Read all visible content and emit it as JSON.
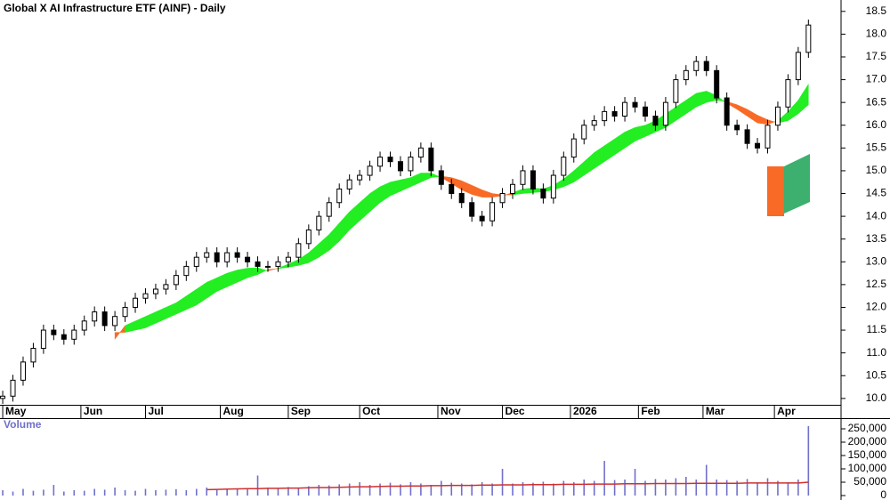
{
  "chart_data": [
    {
      "type": "candlestick",
      "title": "Global X AI Infrastructure ETF (AINF) - Daily",
      "x": [
        0,
        3,
        6,
        9,
        12,
        15,
        18,
        21,
        24,
        27,
        30,
        33,
        36,
        39,
        42,
        45,
        48,
        51,
        54,
        57,
        60,
        63,
        66,
        69,
        72,
        75,
        78,
        81,
        84,
        87,
        90,
        93,
        96,
        99,
        102,
        105,
        108,
        111,
        114,
        117,
        120,
        123,
        126,
        129,
        132,
        135,
        138,
        141,
        144,
        147,
        150,
        153,
        156,
        159,
        162,
        165,
        168,
        171,
        174,
        177,
        180,
        183,
        186,
        189,
        192,
        195,
        198,
        201,
        204,
        207,
        210,
        213,
        216,
        219,
        222,
        225,
        228,
        231,
        234,
        237
      ],
      "open": [
        10.0,
        10.05,
        10.4,
        10.8,
        11.1,
        11.5,
        11.4,
        11.3,
        11.5,
        11.7,
        11.9,
        11.6,
        11.8,
        12.0,
        12.2,
        12.3,
        12.4,
        12.5,
        12.7,
        12.9,
        13.1,
        13.2,
        13.0,
        13.2,
        13.1,
        13.0,
        12.9,
        12.9,
        13.0,
        13.1,
        13.4,
        13.7,
        14.0,
        14.3,
        14.6,
        14.8,
        14.9,
        15.1,
        15.3,
        15.2,
        15.0,
        15.3,
        15.5,
        15.0,
        14.7,
        14.5,
        14.3,
        14.0,
        13.9,
        14.3,
        14.5,
        14.7,
        15.0,
        14.6,
        14.4,
        14.9,
        15.3,
        15.7,
        16.0,
        16.1,
        16.3,
        16.2,
        16.5,
        16.4,
        16.2,
        16.0,
        16.5,
        17.0,
        17.2,
        17.4,
        17.2,
        16.6,
        16.0,
        15.9,
        15.6,
        15.5,
        16.0,
        16.4,
        17.0,
        17.6
      ],
      "high": [
        10.17,
        10.52,
        10.92,
        11.22,
        11.62,
        11.62,
        11.52,
        11.62,
        11.82,
        12.02,
        12.02,
        11.92,
        12.12,
        12.32,
        12.42,
        12.52,
        12.62,
        12.82,
        13.02,
        13.22,
        13.32,
        13.32,
        13.32,
        13.32,
        13.22,
        13.12,
        13.02,
        13.12,
        13.22,
        13.52,
        13.82,
        14.12,
        14.42,
        14.72,
        14.92,
        15.02,
        15.22,
        15.42,
        15.42,
        15.32,
        15.42,
        15.62,
        15.62,
        15.12,
        14.82,
        14.62,
        14.42,
        14.12,
        14.42,
        14.62,
        14.82,
        15.12,
        15.12,
        14.72,
        15.02,
        15.42,
        15.82,
        16.12,
        16.22,
        16.42,
        16.42,
        16.62,
        16.62,
        16.52,
        16.32,
        16.62,
        17.12,
        17.32,
        17.52,
        17.52,
        17.32,
        16.72,
        16.12,
        16.02,
        15.72,
        16.12,
        16.52,
        17.12,
        17.72,
        18.32
      ],
      "low": [
        9.88,
        9.93,
        10.28,
        10.68,
        10.98,
        11.28,
        11.18,
        11.18,
        11.38,
        11.58,
        11.48,
        11.48,
        11.68,
        11.88,
        12.08,
        12.18,
        12.28,
        12.38,
        12.58,
        12.78,
        12.98,
        12.88,
        12.88,
        12.98,
        12.88,
        12.78,
        12.78,
        12.78,
        12.88,
        12.98,
        13.28,
        13.58,
        13.88,
        14.18,
        14.48,
        14.68,
        14.78,
        14.98,
        15.08,
        14.88,
        14.88,
        15.18,
        14.88,
        14.58,
        14.38,
        14.18,
        13.88,
        13.78,
        13.78,
        14.18,
        14.38,
        14.58,
        14.48,
        14.28,
        14.28,
        14.78,
        15.18,
        15.58,
        15.88,
        15.98,
        16.08,
        16.08,
        16.28,
        16.08,
        15.88,
        15.88,
        16.38,
        16.88,
        17.08,
        17.08,
        16.48,
        15.88,
        15.78,
        15.48,
        15.38,
        15.38,
        15.88,
        16.28,
        16.88,
        17.48
      ],
      "close": [
        10.05,
        10.4,
        10.8,
        11.1,
        11.5,
        11.4,
        11.3,
        11.5,
        11.7,
        11.9,
        11.6,
        11.8,
        12.0,
        12.2,
        12.3,
        12.4,
        12.5,
        12.7,
        12.9,
        13.1,
        13.2,
        13.0,
        13.2,
        13.1,
        13.0,
        12.9,
        12.9,
        13.0,
        13.1,
        13.4,
        13.7,
        14.0,
        14.3,
        14.6,
        14.8,
        14.9,
        15.1,
        15.3,
        15.2,
        15.0,
        15.3,
        15.5,
        15.0,
        14.7,
        14.5,
        14.3,
        14.0,
        13.9,
        14.3,
        14.5,
        14.7,
        15.0,
        14.6,
        14.4,
        14.9,
        15.3,
        15.7,
        16.0,
        16.1,
        16.3,
        16.2,
        16.5,
        16.4,
        16.2,
        16.0,
        16.5,
        17.0,
        17.2,
        17.4,
        17.2,
        16.6,
        16.0,
        15.9,
        15.6,
        15.5,
        16.0,
        16.4,
        17.0,
        17.6,
        18.2
      ],
      "ribbon_fast": [
        null,
        null,
        null,
        null,
        null,
        null,
        null,
        null,
        null,
        null,
        null,
        11.3,
        11.6,
        11.7,
        11.8,
        11.9,
        12.0,
        12.1,
        12.25,
        12.4,
        12.55,
        12.65,
        12.75,
        12.82,
        12.86,
        12.87,
        12.8,
        12.86,
        12.95,
        13.05,
        13.2,
        13.4,
        13.6,
        13.85,
        14.1,
        14.3,
        14.5,
        14.65,
        14.75,
        14.8,
        14.85,
        14.95,
        14.95,
        14.85,
        14.72,
        14.58,
        14.48,
        14.42,
        14.42,
        14.45,
        14.52,
        14.6,
        14.62,
        14.6,
        14.68,
        14.82,
        15.0,
        15.2,
        15.4,
        15.55,
        15.7,
        15.85,
        15.95,
        16.0,
        16.1,
        16.25,
        16.4,
        16.55,
        16.7,
        16.75,
        16.65,
        16.48,
        16.35,
        16.2,
        16.05,
        16.02,
        16.1,
        16.3,
        16.55,
        16.9
      ],
      "ribbon_slow": [
        null,
        null,
        null,
        null,
        null,
        null,
        null,
        null,
        null,
        null,
        null,
        11.45,
        11.45,
        11.5,
        11.55,
        11.65,
        11.75,
        11.85,
        11.95,
        12.05,
        12.2,
        12.35,
        12.45,
        12.55,
        12.65,
        12.72,
        12.83,
        12.85,
        12.88,
        12.92,
        12.98,
        13.1,
        13.25,
        13.45,
        13.7,
        13.9,
        14.1,
        14.3,
        14.45,
        14.55,
        14.65,
        14.75,
        14.85,
        14.88,
        14.85,
        14.78,
        14.68,
        14.58,
        14.5,
        14.47,
        14.47,
        14.5,
        14.52,
        14.54,
        14.58,
        14.65,
        14.75,
        14.9,
        15.05,
        15.2,
        15.35,
        15.5,
        15.65,
        15.75,
        15.85,
        15.95,
        16.1,
        16.25,
        16.4,
        16.5,
        16.55,
        16.52,
        16.45,
        16.35,
        16.22,
        16.12,
        16.05,
        16.1,
        16.25,
        16.45
      ],
      "ribbon_colors": {
        "up": "#22ee22",
        "down": "#f96a26"
      },
      "up_color": "#ffffff",
      "down_color": "#000000",
      "xlim": [
        -0.8,
        246.6
      ],
      "xticks": [
        {
          "value": 0,
          "label": "May"
        },
        {
          "value": 23,
          "label": "Jun"
        },
        {
          "value": 42,
          "label": "Jul"
        },
        {
          "value": 64,
          "label": "Aug"
        },
        {
          "value": 84,
          "label": "Sep"
        },
        {
          "value": 105,
          "label": "Oct"
        },
        {
          "value": 128,
          "label": "Nov"
        },
        {
          "value": 147,
          "label": "Dec"
        },
        {
          "value": 167,
          "label": "2026"
        },
        {
          "value": 187,
          "label": "Feb"
        },
        {
          "value": 206,
          "label": "Mar"
        },
        {
          "value": 227,
          "label": "Apr"
        }
      ],
      "ylim": [
        9.86,
        18.75
      ],
      "yticks": [
        {
          "value": 10,
          "label": "10.0"
        },
        10.5,
        {
          "value": 11,
          "label": "11.0"
        },
        11.5,
        {
          "value": 12,
          "label": "12.0"
        },
        12.5,
        {
          "value": 13,
          "label": "13.0"
        },
        13.5,
        {
          "value": 14,
          "label": "14.0"
        },
        14.5,
        {
          "value": 15,
          "label": "15.0"
        },
        15.5,
        {
          "value": 16,
          "label": "16.0"
        },
        16.5,
        {
          "value": 17,
          "label": "17.0"
        },
        17.5,
        {
          "value": 18,
          "label": "18.0"
        },
        18.5
      ]
    },
    {
      "type": "bar",
      "title": "Volume",
      "color": "#7070cc",
      "ma_color": "#d03030",
      "x": [
        0,
        3,
        6,
        9,
        12,
        15,
        18,
        21,
        24,
        27,
        30,
        33,
        36,
        39,
        42,
        45,
        48,
        51,
        54,
        57,
        60,
        63,
        66,
        69,
        72,
        75,
        78,
        81,
        84,
        87,
        90,
        93,
        96,
        99,
        102,
        105,
        108,
        111,
        114,
        117,
        120,
        123,
        126,
        129,
        132,
        135,
        138,
        141,
        144,
        147,
        150,
        153,
        156,
        159,
        162,
        165,
        168,
        171,
        174,
        177,
        180,
        183,
        186,
        189,
        192,
        195,
        198,
        201,
        204,
        207,
        210,
        213,
        216,
        219,
        222,
        225,
        228,
        231,
        234,
        237
      ],
      "values": [
        20000,
        15000,
        25000,
        18000,
        22000,
        40000,
        15000,
        20000,
        18000,
        25000,
        22000,
        30000,
        20000,
        18000,
        25000,
        20000,
        22000,
        24000,
        20000,
        25000,
        30000,
        22000,
        26000,
        25000,
        28000,
        75000,
        30000,
        28000,
        32000,
        30000,
        35000,
        40000,
        38000,
        42000,
        45000,
        50000,
        40000,
        45000,
        48000,
        42000,
        50000,
        45000,
        40000,
        55000,
        48000,
        45000,
        42000,
        50000,
        45000,
        100000,
        45000,
        50000,
        48000,
        52000,
        45000,
        55000,
        50000,
        60000,
        55000,
        130000,
        58000,
        60000,
        100000,
        55000,
        62000,
        60000,
        65000,
        70000,
        60000,
        115000,
        60000,
        58000,
        55000,
        62000,
        50000,
        65000,
        55000,
        50000,
        60000,
        260000
      ],
      "moving_average": [
        null,
        null,
        null,
        null,
        null,
        null,
        null,
        null,
        null,
        null,
        null,
        null,
        null,
        null,
        null,
        null,
        null,
        null,
        null,
        null,
        22000,
        23000,
        24000,
        25000,
        26000,
        26000,
        27000,
        27000,
        28000,
        28000,
        29000,
        30000,
        30000,
        31000,
        32000,
        33000,
        33000,
        34000,
        35000,
        35000,
        36000,
        36000,
        37000,
        37000,
        38000,
        38000,
        38000,
        39000,
        39000,
        40000,
        40000,
        40000,
        41000,
        41000,
        41000,
        42000,
        42000,
        42000,
        43000,
        43000,
        43000,
        44000,
        44000,
        44000,
        45000,
        45000,
        45000,
        45000,
        46000,
        46000,
        46000,
        46000,
        46000,
        47000,
        47000,
        47000,
        47000,
        47000,
        47000,
        50000
      ],
      "xlim": [
        -0.8,
        246.6
      ],
      "ylim": [
        0,
        290000
      ],
      "yticks": [
        0,
        {
          "value": 50000,
          "label": "50,000"
        },
        {
          "value": 100000,
          "label": "100,000"
        },
        {
          "value": 150000,
          "label": "150,000"
        },
        {
          "value": 200000,
          "label": "200,000"
        },
        {
          "value": 250000,
          "label": "250,000"
        }
      ]
    }
  ]
}
